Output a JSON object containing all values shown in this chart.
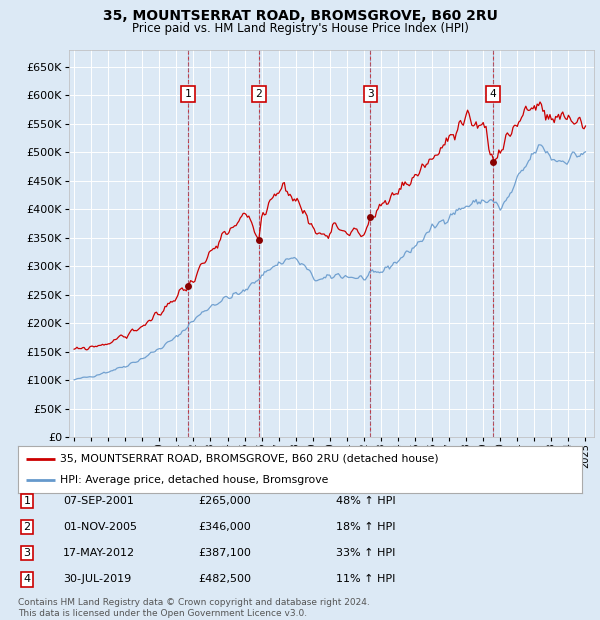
{
  "title": "35, MOUNTSERRAT ROAD, BROMSGROVE, B60 2RU",
  "subtitle": "Price paid vs. HM Land Registry's House Price Index (HPI)",
  "background_color": "#dce9f5",
  "plot_bg_color": "#dce9f5",
  "grid_color": "#ffffff",
  "ylim": [
    0,
    680000
  ],
  "yticks": [
    0,
    50000,
    100000,
    150000,
    200000,
    250000,
    300000,
    350000,
    400000,
    450000,
    500000,
    550000,
    600000,
    650000
  ],
  "xlim_start": 1994.7,
  "xlim_end": 2025.5,
  "sale_dates": [
    2001.69,
    2005.84,
    2012.38,
    2019.58
  ],
  "sale_prices": [
    265000,
    346000,
    387100,
    482500
  ],
  "sale_labels": [
    "1",
    "2",
    "3",
    "4"
  ],
  "red_line_color": "#cc0000",
  "blue_line_color": "#6699cc",
  "legend_entries": [
    "35, MOUNTSERRAT ROAD, BROMSGROVE, B60 2RU (detached house)",
    "HPI: Average price, detached house, Bromsgrove"
  ],
  "table_rows": [
    [
      "1",
      "07-SEP-2001",
      "£265,000",
      "48% ↑ HPI"
    ],
    [
      "2",
      "01-NOV-2005",
      "£346,000",
      "18% ↑ HPI"
    ],
    [
      "3",
      "17-MAY-2012",
      "£387,100",
      "33% ↑ HPI"
    ],
    [
      "4",
      "30-JUL-2019",
      "£482,500",
      "11% ↑ HPI"
    ]
  ],
  "footer": "Contains HM Land Registry data © Crown copyright and database right 2024.\nThis data is licensed under the Open Government Licence v3.0.",
  "hpi_anchors_t": [
    1995.0,
    1996.0,
    1997.0,
    1998.0,
    1999.0,
    2000.0,
    2001.0,
    2002.0,
    2003.0,
    2004.0,
    2005.0,
    2006.0,
    2007.0,
    2007.8,
    2008.5,
    2009.0,
    2009.5,
    2010.0,
    2010.5,
    2011.0,
    2011.5,
    2012.0,
    2013.0,
    2014.0,
    2015.0,
    2016.0,
    2017.0,
    2018.0,
    2019.0,
    2019.5,
    2020.0,
    2020.5,
    2021.0,
    2021.5,
    2022.0,
    2022.5,
    2023.0,
    2023.5,
    2024.0,
    2024.5,
    2025.0
  ],
  "hpi_anchors_p": [
    100000,
    107000,
    115000,
    125000,
    138000,
    155000,
    175000,
    205000,
    230000,
    245000,
    255000,
    285000,
    305000,
    315000,
    300000,
    280000,
    275000,
    280000,
    285000,
    282000,
    280000,
    278000,
    290000,
    310000,
    335000,
    365000,
    390000,
    405000,
    415000,
    415000,
    400000,
    420000,
    450000,
    475000,
    500000,
    510000,
    490000,
    485000,
    490000,
    495000,
    500000
  ],
  "prop_anchors_t": [
    1995.0,
    1996.0,
    1997.0,
    1998.0,
    1999.0,
    2000.0,
    2001.0,
    2001.69,
    2002.0,
    2003.0,
    2004.0,
    2005.0,
    2005.84,
    2006.0,
    2006.5,
    2007.0,
    2007.5,
    2008.0,
    2008.5,
    2009.0,
    2009.5,
    2010.0,
    2010.5,
    2011.0,
    2011.5,
    2012.0,
    2012.38,
    2013.0,
    2014.0,
    2015.0,
    2016.0,
    2017.0,
    2018.0,
    2019.0,
    2019.58,
    2020.0,
    2020.5,
    2021.0,
    2021.5,
    2022.0,
    2022.5,
    2023.0,
    2023.5,
    2024.0,
    2024.5,
    2025.0
  ],
  "prop_anchors_p": [
    152000,
    158000,
    165000,
    178000,
    195000,
    215000,
    248000,
    265000,
    280000,
    320000,
    355000,
    390000,
    346000,
    380000,
    420000,
    435000,
    440000,
    415000,
    395000,
    365000,
    355000,
    368000,
    372000,
    365000,
    358000,
    355000,
    387100,
    400000,
    430000,
    460000,
    490000,
    520000,
    545000,
    555000,
    482500,
    510000,
    530000,
    555000,
    575000,
    580000,
    570000,
    555000,
    555000,
    560000,
    555000,
    550000
  ]
}
